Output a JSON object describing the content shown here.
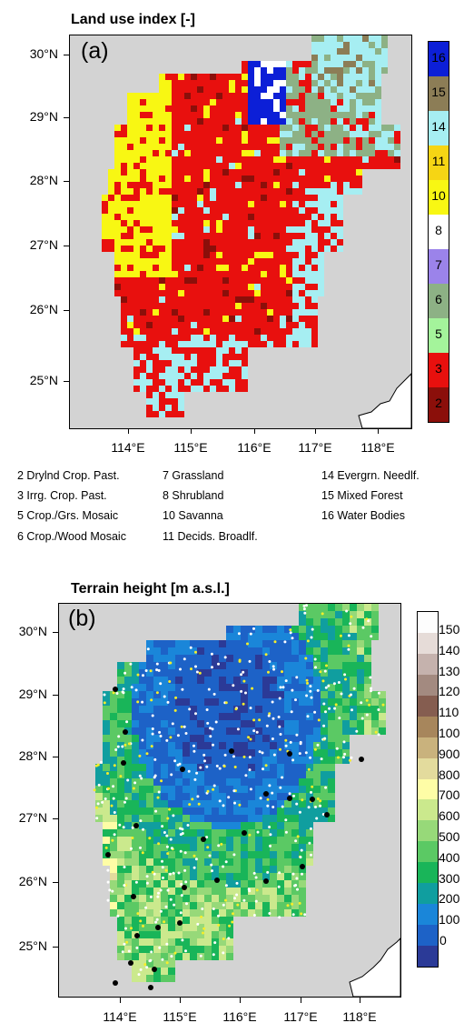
{
  "panel_a": {
    "title": "Land use index [-]",
    "tag": "(a)",
    "y_ticks": [
      "30°N",
      "29°N",
      "28°N",
      "27°N",
      "26°N",
      "25°N"
    ],
    "x_ticks": [
      "114°E",
      "115°E",
      "116°E",
      "117°E",
      "118°E"
    ],
    "colorbar": [
      {
        "label": "16",
        "color": "#0c1fd7"
      },
      {
        "label": "15",
        "color": "#8c7d56"
      },
      {
        "label": "14",
        "color": "#a6eef2"
      },
      {
        "label": "11",
        "color": "#f6d514"
      },
      {
        "label": "10",
        "color": "#f8f713"
      },
      {
        "label": "8",
        "color": "#ffffff"
      },
      {
        "label": "7",
        "color": "#9b83ea"
      },
      {
        "label": "6",
        "color": "#8db185"
      },
      {
        "label": "5",
        "color": "#a4f49b"
      },
      {
        "label": "3",
        "color": "#e8100e"
      },
      {
        "label": "2",
        "color": "#8b0f0a"
      }
    ],
    "legend": [
      "2 Drylnd Crop. Past.",
      "3 Irrg. Crop. Past.",
      "5 Crop./Grs. Mosaic",
      "6 Crop./Wood Mosaic",
      "7 Grassland",
      "8 Shrubland",
      "10 Savanna",
      "11 Decids. Broadlf.",
      "14 Evergrn. Needlf.",
      "15 Mixed Forest",
      "16 Water Bodies"
    ]
  },
  "panel_b": {
    "title": "Terrain height [m a.s.l.]",
    "tag": "(b)",
    "y_ticks": [
      "30°N",
      "29°N",
      "28°N",
      "27°N",
      "26°N",
      "25°N"
    ],
    "x_ticks": [
      "114°E",
      "115°E",
      "116°E",
      "117°E",
      "118°E"
    ],
    "colorbar_labels": [
      "150",
      "140",
      "130",
      "120",
      "110",
      "100",
      "900",
      "800",
      "700",
      "600",
      "500",
      "400",
      "300",
      "200",
      "100",
      "0"
    ],
    "colorbar_colors": [
      "#fdfdfd",
      "#e6dcd8",
      "#c5b2ad",
      "#a38a80",
      "#855d50",
      "#a7865c",
      "#c9b27d",
      "#e3db9d",
      "#fefda6",
      "#cbe98d",
      "#97d979",
      "#5bc964",
      "#19b559",
      "#109e9f",
      "#1a86d9",
      "#1d62c7",
      "#2b3a97"
    ]
  }
}
